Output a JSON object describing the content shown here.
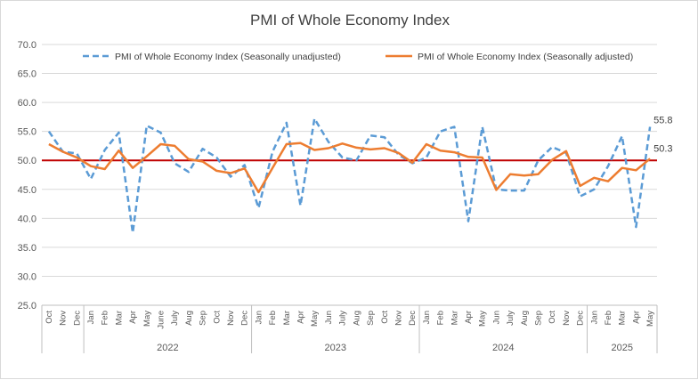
{
  "chart_data": {
    "type": "line",
    "title": "PMI of Whole Economy Index",
    "xlabel": "",
    "ylabel": "",
    "ylim": [
      25.0,
      70.0
    ],
    "yticks": [
      "25.0",
      "30.0",
      "35.0",
      "40.0",
      "45.0",
      "50.0",
      "55.0",
      "60.0",
      "65.0",
      "70.0"
    ],
    "grid": "horizontal",
    "legend_position": "top",
    "categories": [
      "Oct",
      "Nov",
      "Dec",
      "Jan",
      "Feb",
      "Mar",
      "Apr",
      "May",
      "June",
      "July",
      "Aug",
      "Sep",
      "Oct",
      "Nov",
      "Dec",
      "Jan",
      "Feb",
      "Mar",
      "Apr",
      "May",
      "Jun",
      "July",
      "Aug",
      "Sep",
      "Oct",
      "Nov",
      "Dec",
      "Jan",
      "Feb",
      "Mar",
      "Apr",
      "May",
      "Jun",
      "July",
      "Aug",
      "Sep",
      "Oct",
      "Nov",
      "Dec",
      "Jan",
      "Feb",
      "Mar",
      "Apr",
      "May"
    ],
    "year_groups": [
      {
        "label": "",
        "start": 0,
        "end": 2
      },
      {
        "label": "2022",
        "start": 3,
        "end": 14
      },
      {
        "label": "2023",
        "start": 15,
        "end": 26
      },
      {
        "label": "2024",
        "start": 27,
        "end": 38
      },
      {
        "label": "2025",
        "start": 39,
        "end": 43
      }
    ],
    "reference_line": {
      "value": 50.0,
      "color": "#c00000"
    },
    "series": [
      {
        "name": "PMI of Whole Economy Index (Seasonally unadjusted)",
        "color": "#5b9bd5",
        "style": "dashed",
        "values": [
          55.0,
          51.5,
          51.2,
          46.8,
          51.8,
          54.8,
          37.5,
          56.0,
          54.8,
          49.5,
          48.0,
          52.0,
          50.5,
          47.2,
          49.2,
          41.8,
          51.5,
          56.5,
          42.2,
          57.2,
          53.2,
          50.5,
          50.0,
          54.3,
          54.0,
          51.0,
          49.5,
          50.5,
          55.0,
          55.8,
          39.5,
          55.8,
          45.0,
          44.8,
          44.8,
          50.0,
          52.3,
          51.3,
          43.8,
          45.0,
          49.0,
          54.2,
          38.5,
          55.8
        ]
      },
      {
        "name": "PMI of Whole Economy Index (Seasonally adjusted)",
        "color": "#ed7d31",
        "style": "solid",
        "values": [
          52.8,
          51.5,
          50.5,
          49.0,
          48.5,
          51.7,
          48.7,
          50.7,
          52.8,
          52.5,
          50.2,
          49.8,
          48.2,
          47.8,
          48.6,
          44.5,
          48.7,
          52.8,
          53.0,
          51.8,
          52.1,
          52.9,
          52.2,
          51.9,
          52.1,
          51.3,
          49.6,
          52.8,
          51.7,
          51.4,
          50.6,
          50.5,
          44.9,
          47.6,
          47.4,
          47.6,
          50.1,
          51.6,
          45.6,
          47.0,
          46.4,
          48.7,
          48.3,
          50.3
        ]
      }
    ],
    "annotations": [
      {
        "text": "55.8",
        "series": 0,
        "index": 43
      },
      {
        "text": "50.3",
        "series": 1,
        "index": 43
      }
    ]
  }
}
